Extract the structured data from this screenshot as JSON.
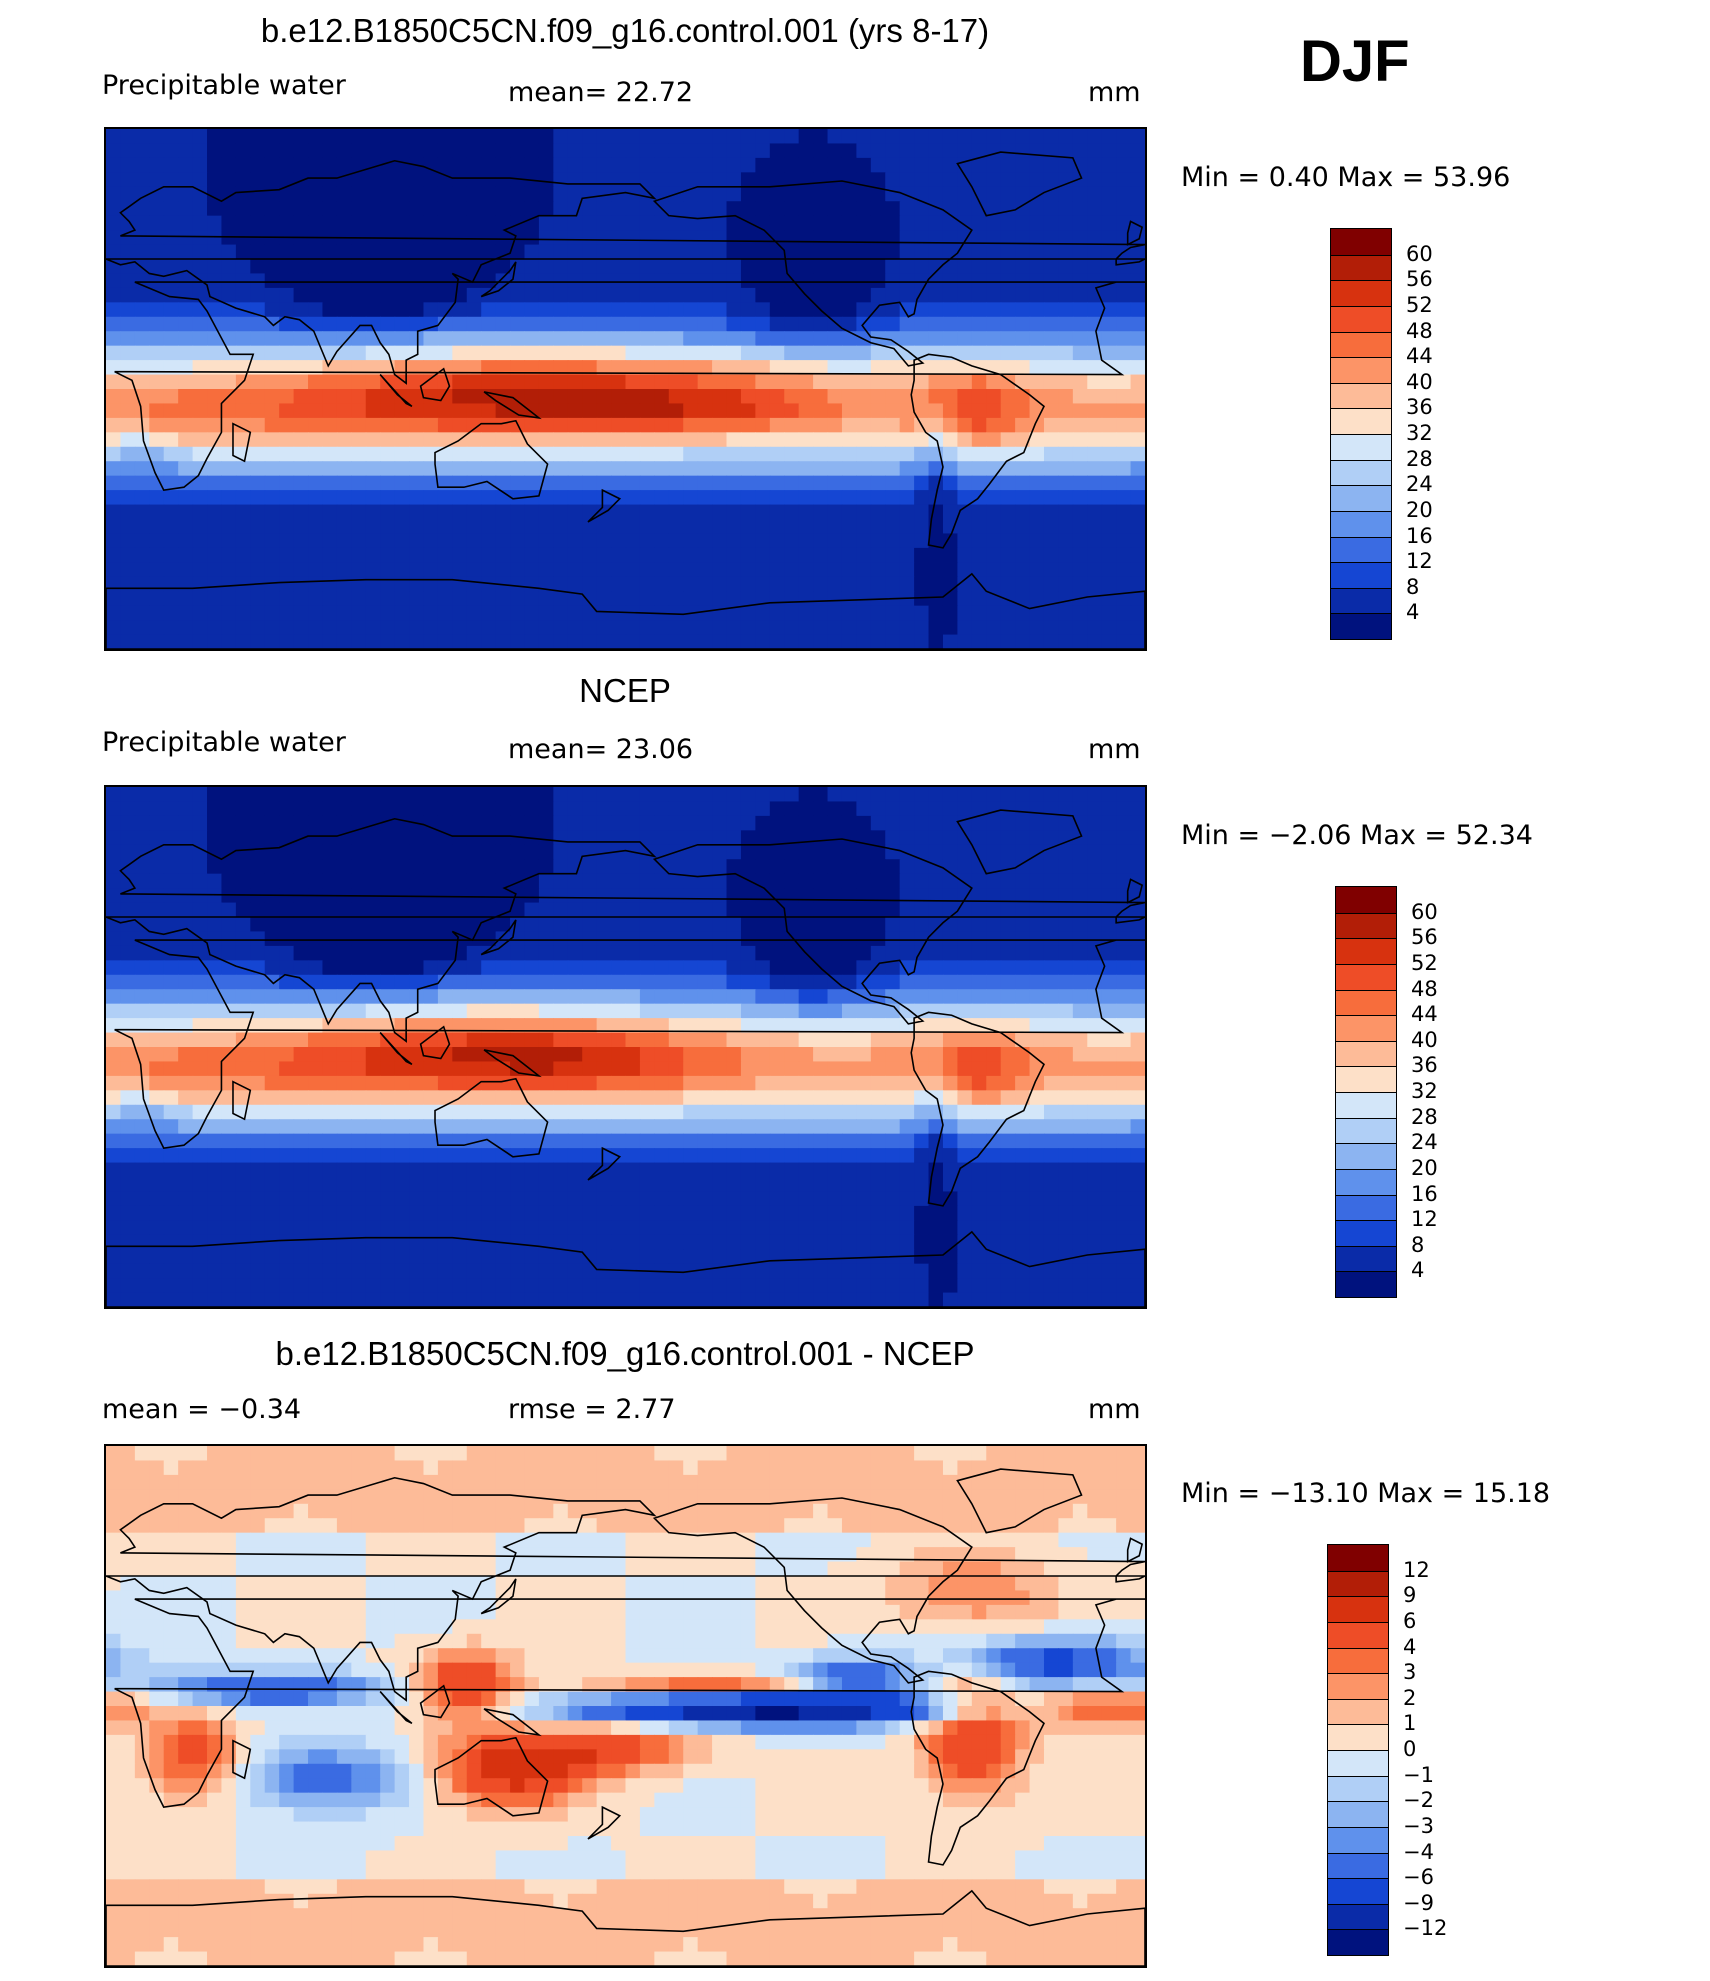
{
  "season": "DJF",
  "panels": [
    {
      "title": "b.e12.B1850C5CN.f09_g16.control.001 (yrs 8-17)",
      "left_label": "Precipitable  water",
      "center_label": "mean=   22.72",
      "right_label": "mm",
      "minmax": "Min  =     0.40  Max  =    53.96",
      "colorbar_labels": [
        "60",
        "56",
        "52",
        "48",
        "44",
        "40",
        "36",
        "32",
        "28",
        "24",
        "20",
        "16",
        "12",
        "8",
        "4"
      ],
      "colors": [
        "#800000",
        "#b21e07",
        "#d7320f",
        "#ee4d27",
        "#f76d3c",
        "#fc9467",
        "#fdbb98",
        "#fde0c8",
        "#d3e6f9",
        "#b0cff6",
        "#8cb4f1",
        "#5f91ec",
        "#3a6be2",
        "#1546d3",
        "#0a2ba8",
        "#00127e"
      ]
    },
    {
      "title": "NCEP",
      "left_label": "Precipitable  water",
      "center_label": "mean=   23.06",
      "right_label": "mm",
      "minmax": "Min  =    −2.06  Max  =    52.34",
      "colorbar_labels": [
        "60",
        "56",
        "52",
        "48",
        "44",
        "40",
        "36",
        "32",
        "28",
        "24",
        "20",
        "16",
        "12",
        "8",
        "4"
      ],
      "colors": [
        "#800000",
        "#b21e07",
        "#d7320f",
        "#ee4d27",
        "#f76d3c",
        "#fc9467",
        "#fdbb98",
        "#fde0c8",
        "#d3e6f9",
        "#b0cff6",
        "#8cb4f1",
        "#5f91ec",
        "#3a6be2",
        "#1546d3",
        "#0a2ba8",
        "#00127e"
      ]
    },
    {
      "title": "b.e12.B1850C5CN.f09_g16.control.001 - NCEP",
      "left_label": "mean  =    −0.34",
      "center_label": "rmse  =     2.77",
      "right_label": "mm",
      "minmax": "Min  = −13.10  Max  =    15.18",
      "colorbar_labels": [
        "12",
        "9",
        "6",
        "4",
        "3",
        "2",
        "1",
        "0",
        "−1",
        "−2",
        "−3",
        "−4",
        "−6",
        "−9",
        "−12"
      ],
      "colors": [
        "#800000",
        "#b21e07",
        "#d7320f",
        "#ee4d27",
        "#f76d3c",
        "#fc9467",
        "#fdbb98",
        "#fde0c8",
        "#d3e6f9",
        "#b0cff6",
        "#8cb4f1",
        "#5f91ec",
        "#3a6be2",
        "#1546d3",
        "#0a2ba8",
        "#00127e"
      ]
    }
  ],
  "chart_data": [
    {
      "type": "heatmap",
      "title": "b.e12.B1850C5CN.f09_g16.control.001 (yrs 8-17)",
      "variable": "Precipitable  water",
      "units": "mm",
      "mean": 22.72,
      "min": 0.4,
      "max": 53.96,
      "contour_levels": [
        4,
        8,
        12,
        16,
        20,
        24,
        28,
        32,
        36,
        40,
        44,
        48,
        52,
        56,
        60
      ],
      "season": "DJF"
    },
    {
      "type": "heatmap",
      "title": "NCEP",
      "variable": "Precipitable  water",
      "units": "mm",
      "mean": 23.06,
      "min": -2.06,
      "max": 52.34,
      "contour_levels": [
        4,
        8,
        12,
        16,
        20,
        24,
        28,
        32,
        36,
        40,
        44,
        48,
        52,
        56,
        60
      ],
      "season": "DJF"
    },
    {
      "type": "heatmap",
      "title": "b.e12.B1850C5CN.f09_g16.control.001 - NCEP",
      "units": "mm",
      "mean": -0.34,
      "rmse": 2.77,
      "min": -13.1,
      "max": 15.18,
      "contour_levels": [
        -12,
        -9,
        -6,
        -4,
        -3,
        -2,
        -1,
        0,
        1,
        2,
        3,
        4,
        6,
        9,
        12
      ],
      "season": "DJF"
    }
  ]
}
